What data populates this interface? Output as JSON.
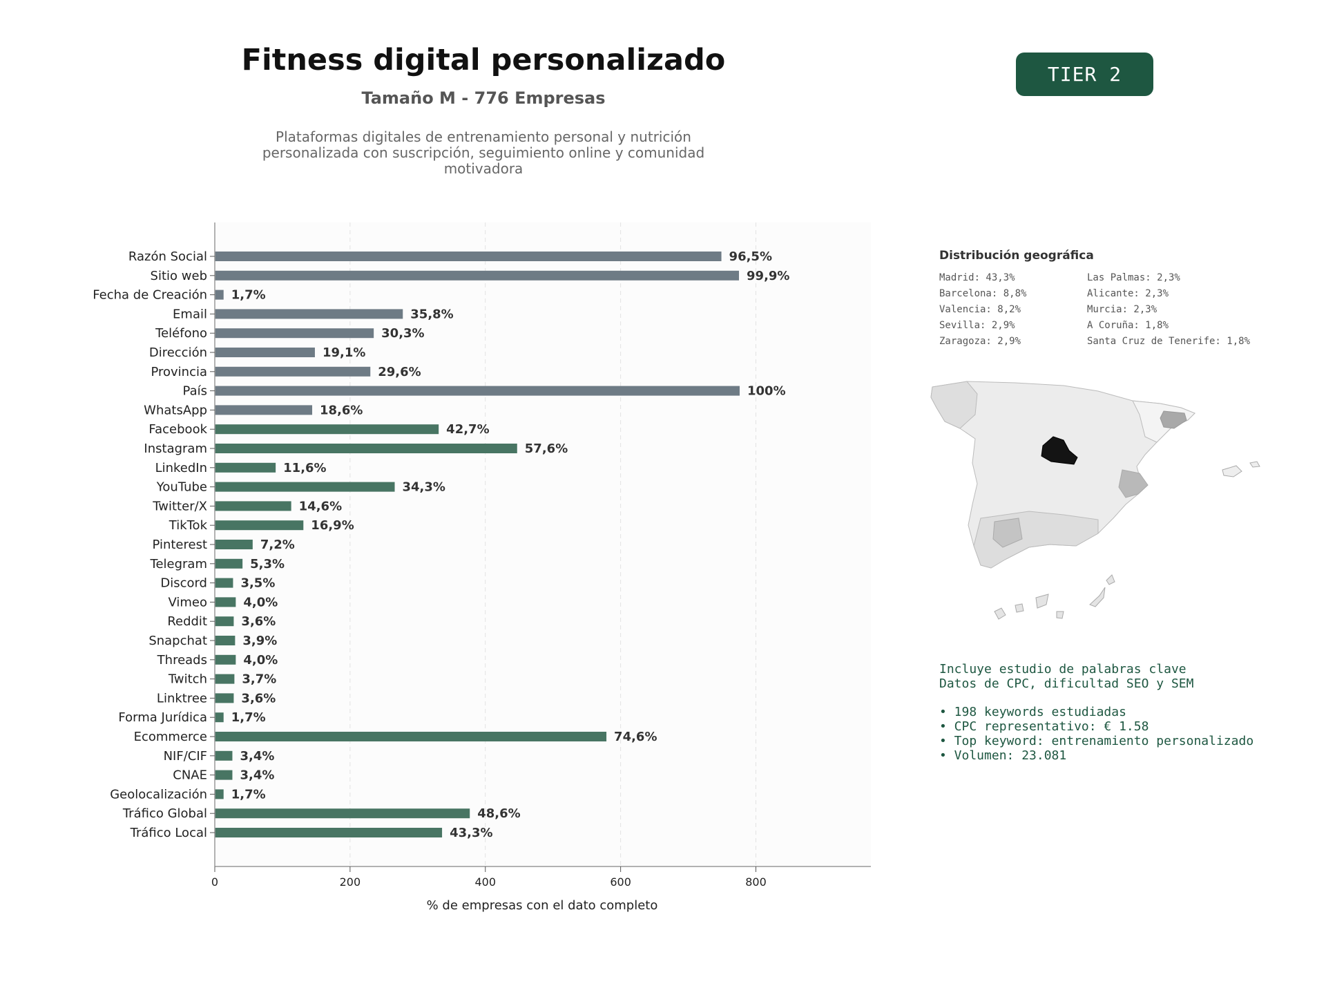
{
  "header": {
    "title": "Fitness digital personalizado",
    "subtitle": "Tamaño M - 776 Empresas",
    "description": "Plataformas digitales de entrenamiento personal y nutrición personalizada con suscripción, seguimiento online y comunidad motivadora",
    "tier": "TIER 2"
  },
  "colors": {
    "contact_bar": "#6e7b85",
    "social_bar": "#487563",
    "badge": "#1e5741",
    "keyword_text": "#1e5741"
  },
  "chart_data": {
    "type": "bar",
    "orientation": "horizontal",
    "xlabel": "% de empresas con el dato completo",
    "xlim": [
      0,
      970
    ],
    "xticks": [
      0,
      200,
      400,
      600,
      800
    ],
    "grid": "vertical-dashed",
    "categories": [
      "Razón Social",
      "Sitio web",
      "Fecha de Creación",
      "Email",
      "Teléfono",
      "Dirección",
      "Provincia",
      "País",
      "WhatsApp",
      "Facebook",
      "Instagram",
      "LinkedIn",
      "YouTube",
      "Twitter/X",
      "TikTok",
      "Pinterest",
      "Telegram",
      "Discord",
      "Vimeo",
      "Reddit",
      "Snapchat",
      "Threads",
      "Twitch",
      "Linktree",
      "Forma Jurídica",
      "Ecommerce",
      "NIF/CIF",
      "CNAE",
      "Geolocalización",
      "Tráfico Global",
      "Tráfico Local"
    ],
    "values": [
      749,
      775,
      13,
      278,
      235,
      148,
      230,
      776,
      144,
      331,
      447,
      90,
      266,
      113,
      131,
      56,
      41,
      27,
      31,
      28,
      30,
      31,
      29,
      28,
      13,
      579,
      26,
      26,
      13,
      377,
      336
    ],
    "labels": [
      "96,5%",
      "99,9%",
      "1,7%",
      "35,8%",
      "30,3%",
      "19,1%",
      "29,6%",
      "100%",
      "18,6%",
      "42,7%",
      "57,6%",
      "11,6%",
      "34,3%",
      "14,6%",
      "16,9%",
      "7,2%",
      "5,3%",
      "3,5%",
      "4,0%",
      "3,6%",
      "3,9%",
      "4,0%",
      "3,7%",
      "3,6%",
      "1,7%",
      "74,6%",
      "3,4%",
      "3,4%",
      "1,7%",
      "48,6%",
      "43,3%"
    ],
    "groups": [
      "contact",
      "contact",
      "contact",
      "contact",
      "contact",
      "contact",
      "contact",
      "contact",
      "contact",
      "social",
      "social",
      "social",
      "social",
      "social",
      "social",
      "social",
      "social",
      "social",
      "social",
      "social",
      "social",
      "social",
      "social",
      "social",
      "social",
      "social",
      "social",
      "social",
      "social",
      "social",
      "social"
    ]
  },
  "geo": {
    "title": "Distribución geográfica",
    "left": [
      "Madrid: 43,3%",
      "Barcelona: 8,8%",
      "Valencia: 8,2%",
      "Sevilla: 2,9%",
      "Zaragoza: 2,9%"
    ],
    "right": [
      "Las Palmas: 2,3%",
      "Alicante: 2,3%",
      "Murcia: 2,3%",
      "A Coruña: 1,8%",
      "Santa Cruz de Tenerife: 1,8%"
    ]
  },
  "keywords": {
    "line1": "Incluye estudio de palabras clave",
    "line2": "Datos de CPC, dificultad SEO y SEM",
    "bullets": [
      "• 198 keywords estudiadas",
      "• CPC representativo: € 1.58",
      "• Top keyword: entrenamiento personalizado",
      "• Volumen: 23.081"
    ]
  }
}
